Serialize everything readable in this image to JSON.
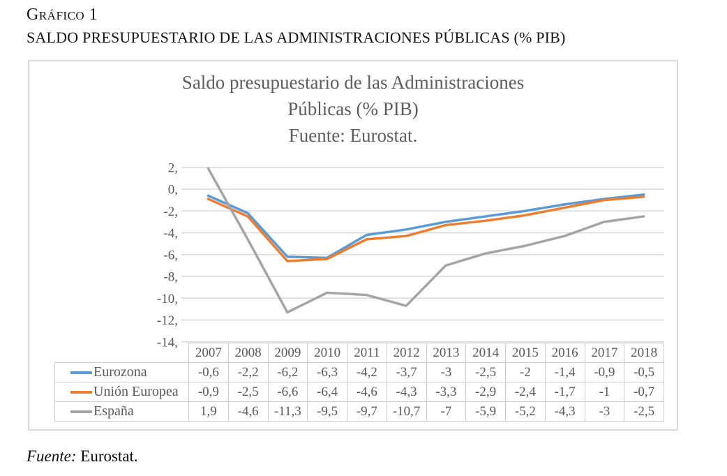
{
  "page": {
    "kicker": "Gráfico 1",
    "heading": "SALDO PRESUPUESTARIO DE LAS ADMINISTRACIONES PÚBLICAS (% PIB)",
    "source_label": "Fuente:",
    "source_text": "Eurostat."
  },
  "chart_data": {
    "type": "line",
    "title": "Saldo presupuestario de las Administraciones Públicas (% PIB) Fuente: Eurostat.",
    "title_lines": [
      "Saldo presupuestario de las Administraciones",
      "Públicas (% PIB)",
      "Fuente: Eurostat."
    ],
    "categories": [
      "2007",
      "2008",
      "2009",
      "2010",
      "2011",
      "2012",
      "2013",
      "2014",
      "2015",
      "2016",
      "2017",
      "2018"
    ],
    "series": [
      {
        "name": "Eurozona",
        "color": "#5B9BD5",
        "values": [
          -0.6,
          -2.2,
          -6.2,
          -6.3,
          -4.2,
          -3.7,
          -3,
          -2.5,
          -2,
          -1.4,
          -0.9,
          -0.5
        ],
        "display_values": [
          "-0,6",
          "-2,2",
          "-6,2",
          "-6,3",
          "-4,2",
          "-3,7",
          "-3",
          "-2,5",
          "-2",
          "-1,4",
          "-0,9",
          "-0,5"
        ]
      },
      {
        "name": "Unión Europea",
        "color": "#ED7D31",
        "values": [
          -0.9,
          -2.5,
          -6.6,
          -6.4,
          -4.6,
          -4.3,
          -3.3,
          -2.9,
          -2.4,
          -1.7,
          -1,
          -0.7
        ],
        "display_values": [
          "-0,9",
          "-2,5",
          "-6,6",
          "-6,4",
          "-4,6",
          "-4,3",
          "-3,3",
          "-2,9",
          "-2,4",
          "-1,7",
          "-1",
          "-0,7"
        ]
      },
      {
        "name": "España",
        "color": "#A5A5A5",
        "values": [
          1.9,
          -4.6,
          -11.3,
          -9.5,
          -9.7,
          -10.7,
          -7,
          -5.9,
          -5.2,
          -4.3,
          -3,
          -2.5
        ],
        "display_values": [
          "1,9",
          "-4,6",
          "-11,3",
          "-9,5",
          "-9,7",
          "-10,7",
          "-7",
          "-5,9",
          "-5,2",
          "-4,3",
          "-3",
          "-2,5"
        ]
      }
    ],
    "y_axis": {
      "ticks": [
        "2,",
        "0,",
        "-2,",
        "-4,",
        "-6,",
        "-8,",
        "-10,",
        "-12,",
        "-14,"
      ],
      "tick_values": [
        2,
        0,
        -2,
        -4,
        -6,
        -8,
        -10,
        -12,
        -14
      ],
      "ylim": [
        -14,
        2
      ]
    },
    "grid": "horizontal",
    "legend_position": "table-rows-left",
    "x_labels_position": "table-header"
  }
}
